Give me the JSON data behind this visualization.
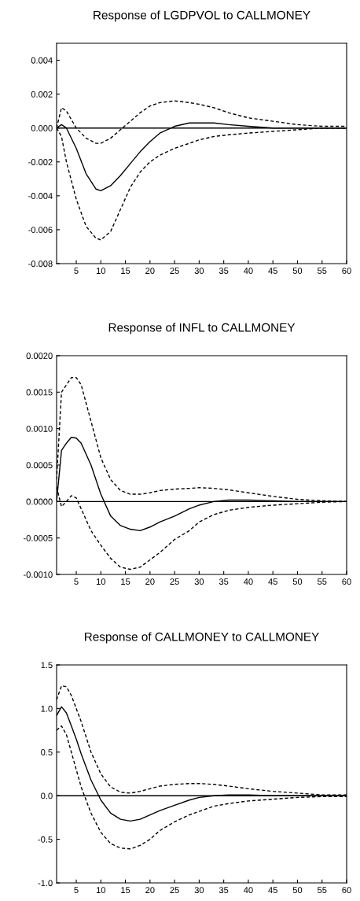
{
  "chart_data": [
    {
      "type": "line",
      "title": "Response of LGDPVOL to CALLMONEY",
      "xlim": [
        1,
        60
      ],
      "xticks": [
        5,
        10,
        15,
        20,
        25,
        30,
        35,
        40,
        45,
        50,
        55,
        60
      ],
      "ylim": [
        -0.008,
        0.005
      ],
      "yticks": [
        {
          "value": -0.008,
          "label": "-0.008"
        },
        {
          "value": -0.006,
          "label": "-0.006"
        },
        {
          "value": -0.004,
          "label": "-0.004"
        },
        {
          "value": -0.002,
          "label": "-0.002"
        },
        {
          "value": 0,
          "label": "0.000"
        },
        {
          "value": 0.002,
          "label": "0.002"
        },
        {
          "value": 0.004,
          "label": "0.004"
        }
      ],
      "grid": false,
      "legend": false,
      "ref_lines": [
        {
          "axis": "y",
          "value": 0,
          "color": "#000000"
        }
      ],
      "x": [
        1,
        2,
        3,
        5,
        7,
        9,
        10,
        12,
        14,
        16,
        18,
        20,
        22,
        25,
        28,
        30,
        33,
        36,
        40,
        45,
        50,
        55,
        60
      ],
      "series": [
        {
          "color": "#000000",
          "line_style": "solid",
          "values": [
            0,
            0.0002,
            0,
            -0.0012,
            -0.0027,
            -0.0036,
            -0.0037,
            -0.0034,
            -0.0028,
            -0.0021,
            -0.0014,
            -0.0008,
            -0.0003,
            0.0001,
            0.0003,
            0.0003,
            0.0003,
            0.0002,
            0.0001,
            0,
            0,
            0,
            0
          ]
        },
        {
          "color": "#000000",
          "line_style": "dashed",
          "values": [
            0,
            0.0012,
            0.001,
            0,
            -0.0006,
            -0.0009,
            -0.0009,
            -0.0006,
            -0.0001,
            0.0004,
            0.0009,
            0.0013,
            0.0015,
            0.0016,
            0.0015,
            0.0014,
            0.0012,
            0.0009,
            0.0006,
            0.0004,
            0.0002,
            0.0001,
            0.0001
          ]
        },
        {
          "color": "#000000",
          "line_style": "dashed",
          "values": [
            0,
            -0.0005,
            -0.002,
            -0.0042,
            -0.0058,
            -0.0065,
            -0.0066,
            -0.0061,
            -0.0048,
            -0.0035,
            -0.0026,
            -0.002,
            -0.0016,
            -0.0012,
            -0.0009,
            -0.0007,
            -0.0005,
            -0.0004,
            -0.0003,
            -0.0002,
            -0.0001,
            0,
            0
          ]
        }
      ]
    },
    {
      "type": "line",
      "title": "Response of INFL to CALLMONEY",
      "xlim": [
        1,
        60
      ],
      "xticks": [
        5,
        10,
        15,
        20,
        25,
        30,
        35,
        40,
        45,
        50,
        55,
        60
      ],
      "ylim": [
        -0.001,
        0.002
      ],
      "yticks": [
        {
          "value": -0.001,
          "label": "-0.0010"
        },
        {
          "value": -0.0005,
          "label": "-0.0005"
        },
        {
          "value": 0,
          "label": "0.0000"
        },
        {
          "value": 0.0005,
          "label": "0.0005"
        },
        {
          "value": 0.001,
          "label": "0.0010"
        },
        {
          "value": 0.0015,
          "label": "0.0015"
        },
        {
          "value": 0.002,
          "label": "0.0020"
        }
      ],
      "grid": false,
      "legend": false,
      "ref_lines": [
        {
          "axis": "y",
          "value": 0,
          "color": "#000000"
        }
      ],
      "x": [
        1,
        2,
        3,
        4,
        5,
        6,
        8,
        10,
        12,
        14,
        16,
        18,
        20,
        22,
        25,
        28,
        30,
        33,
        36,
        40,
        45,
        50,
        55,
        60
      ],
      "series": [
        {
          "color": "#000000",
          "line_style": "solid",
          "values": [
            0,
            0.0007,
            0.0008,
            0.00088,
            0.00087,
            0.0008,
            0.0005,
            0.0001,
            -0.0002,
            -0.00033,
            -0.00038,
            -0.0004,
            -0.00035,
            -0.00028,
            -0.0002,
            -0.0001,
            -5e-05,
            0,
            2e-05,
            2e-05,
            1e-05,
            0,
            0,
            0
          ]
        },
        {
          "color": "#000000",
          "line_style": "dashed",
          "values": [
            0.0003,
            0.0015,
            0.0016,
            0.0017,
            0.0017,
            0.0016,
            0.0011,
            0.0006,
            0.0003,
            0.00015,
            0.0001,
            0.0001,
            0.00012,
            0.00015,
            0.00017,
            0.00018,
            0.00019,
            0.00018,
            0.00016,
            0.00012,
            7e-05,
            3e-05,
            1e-05,
            0
          ]
        },
        {
          "color": "#000000",
          "line_style": "dashed",
          "values": [
            0.0002,
            -7e-05,
            0,
            8e-05,
            5e-05,
            -0.0001,
            -0.0004,
            -0.0006,
            -0.00078,
            -0.0009,
            -0.00093,
            -0.0009,
            -0.0008,
            -0.0007,
            -0.00052,
            -0.0004,
            -0.00028,
            -0.00018,
            -0.00012,
            -8e-05,
            -5e-05,
            -3e-05,
            -1e-05,
            0
          ]
        }
      ]
    },
    {
      "type": "line",
      "title": "Response of CALLMONEY to CALLMONEY",
      "xlim": [
        1,
        60
      ],
      "xticks": [
        5,
        10,
        15,
        20,
        25,
        30,
        35,
        40,
        45,
        50,
        55,
        60
      ],
      "ylim": [
        -1,
        1.5
      ],
      "yticks": [
        {
          "value": -1,
          "label": "-1.0"
        },
        {
          "value": -0.5,
          "label": "-0.5"
        },
        {
          "value": 0,
          "label": "0.0"
        },
        {
          "value": 0.5,
          "label": "0.5"
        },
        {
          "value": 1,
          "label": "1.0"
        },
        {
          "value": 1.5,
          "label": "1.5"
        }
      ],
      "grid": false,
      "legend": false,
      "ref_lines": [
        {
          "axis": "y",
          "value": 0,
          "color": "#000000"
        }
      ],
      "x": [
        1,
        2,
        3,
        4,
        5,
        6,
        8,
        10,
        12,
        14,
        16,
        18,
        20,
        22,
        25,
        28,
        30,
        33,
        36,
        40,
        45,
        50,
        55,
        60
      ],
      "series": [
        {
          "color": "#000000",
          "line_style": "solid",
          "values": [
            0.92,
            1.02,
            0.95,
            0.8,
            0.65,
            0.48,
            0.18,
            -0.05,
            -0.2,
            -0.27,
            -0.29,
            -0.27,
            -0.22,
            -0.17,
            -0.11,
            -0.05,
            -0.02,
            0,
            0.01,
            0.01,
            0,
            0,
            0,
            0
          ]
        },
        {
          "color": "#000000",
          "line_style": "dashed",
          "values": [
            1.1,
            1.26,
            1.25,
            1.15,
            1.0,
            0.85,
            0.5,
            0.25,
            0.1,
            0.04,
            0.03,
            0.05,
            0.08,
            0.11,
            0.13,
            0.14,
            0.14,
            0.13,
            0.11,
            0.08,
            0.05,
            0.03,
            0.01,
            0.01
          ]
        },
        {
          "color": "#000000",
          "line_style": "dashed",
          "values": [
            0.75,
            0.8,
            0.7,
            0.5,
            0.3,
            0.1,
            -0.2,
            -0.42,
            -0.55,
            -0.6,
            -0.61,
            -0.57,
            -0.5,
            -0.4,
            -0.3,
            -0.22,
            -0.18,
            -0.12,
            -0.09,
            -0.06,
            -0.04,
            -0.02,
            -0.01,
            -0.01
          ]
        }
      ]
    }
  ]
}
